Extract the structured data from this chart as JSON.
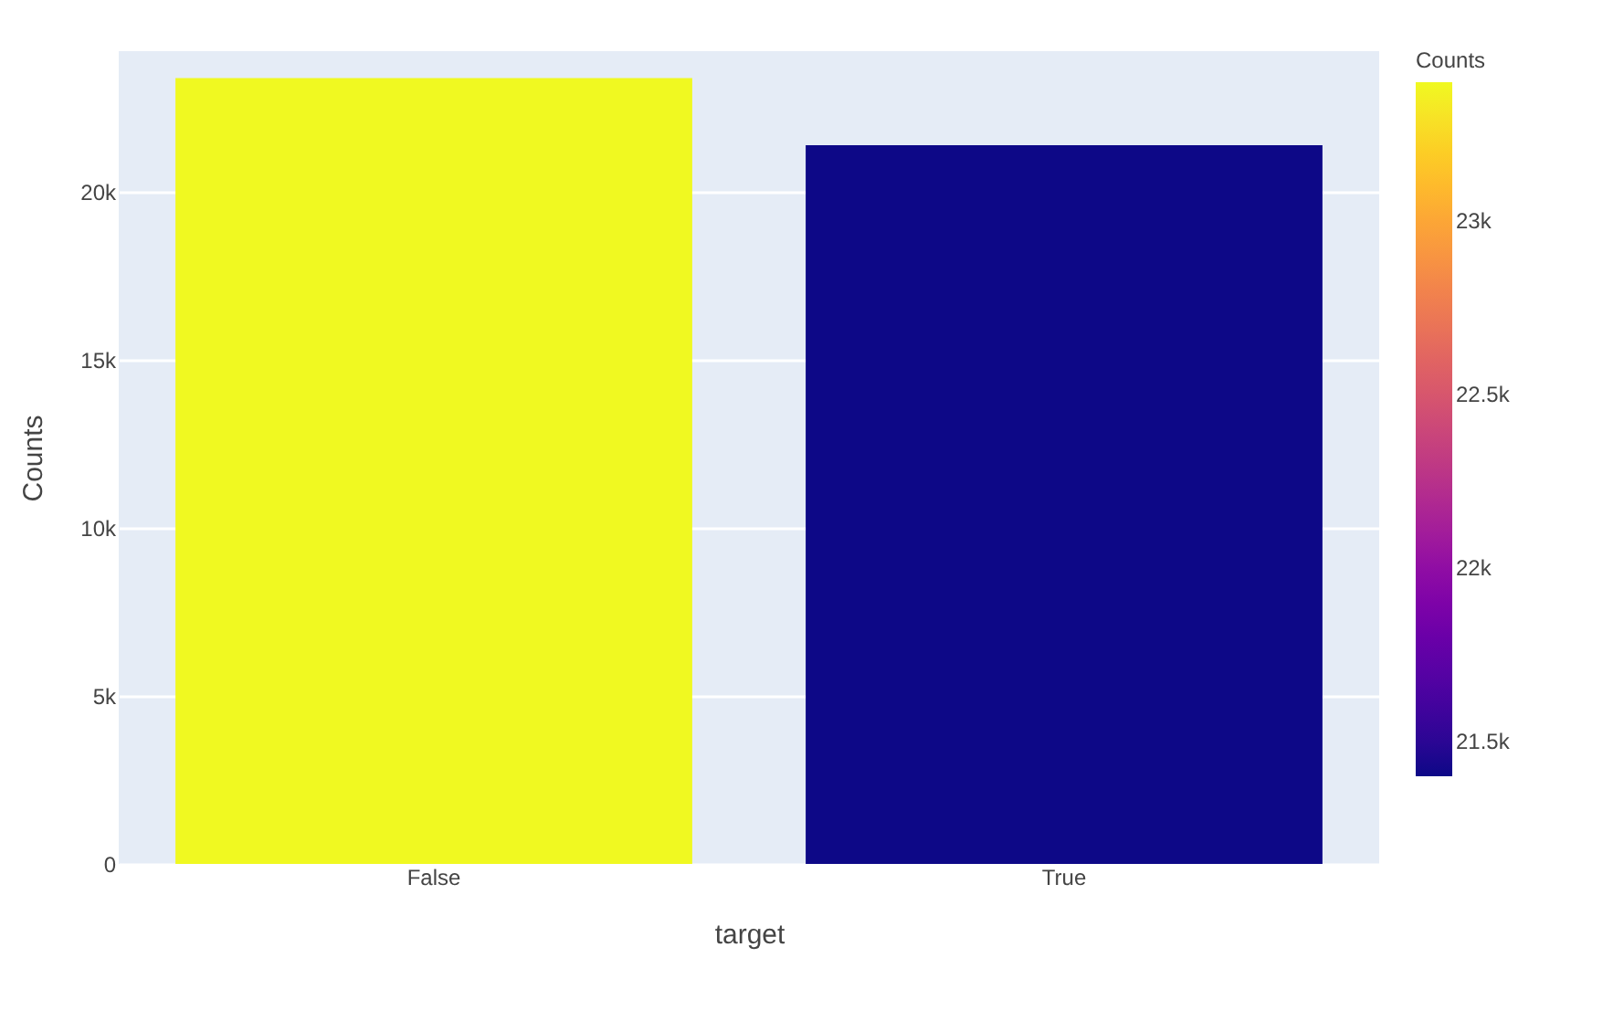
{
  "chart_data": {
    "type": "bar",
    "xlabel": "target",
    "ylabel": "Counts",
    "clabel": "Counts",
    "categories": [
      "False",
      "True"
    ],
    "values": [
      23400,
      21400
    ],
    "ylim": [
      0,
      24200
    ],
    "yticks": [
      {
        "value": 0,
        "label": "0"
      },
      {
        "value": 5000,
        "label": "5k"
      },
      {
        "value": 10000,
        "label": "10k"
      },
      {
        "value": 15000,
        "label": "15k"
      },
      {
        "value": 20000,
        "label": "20k"
      }
    ],
    "clim": [
      21400,
      23400
    ],
    "cticks": [
      {
        "value": 21500,
        "label": "21.5k"
      },
      {
        "value": 22000,
        "label": "22k"
      },
      {
        "value": 22500,
        "label": "22.5k"
      },
      {
        "value": 23000,
        "label": "23k"
      }
    ],
    "grid": "y"
  }
}
